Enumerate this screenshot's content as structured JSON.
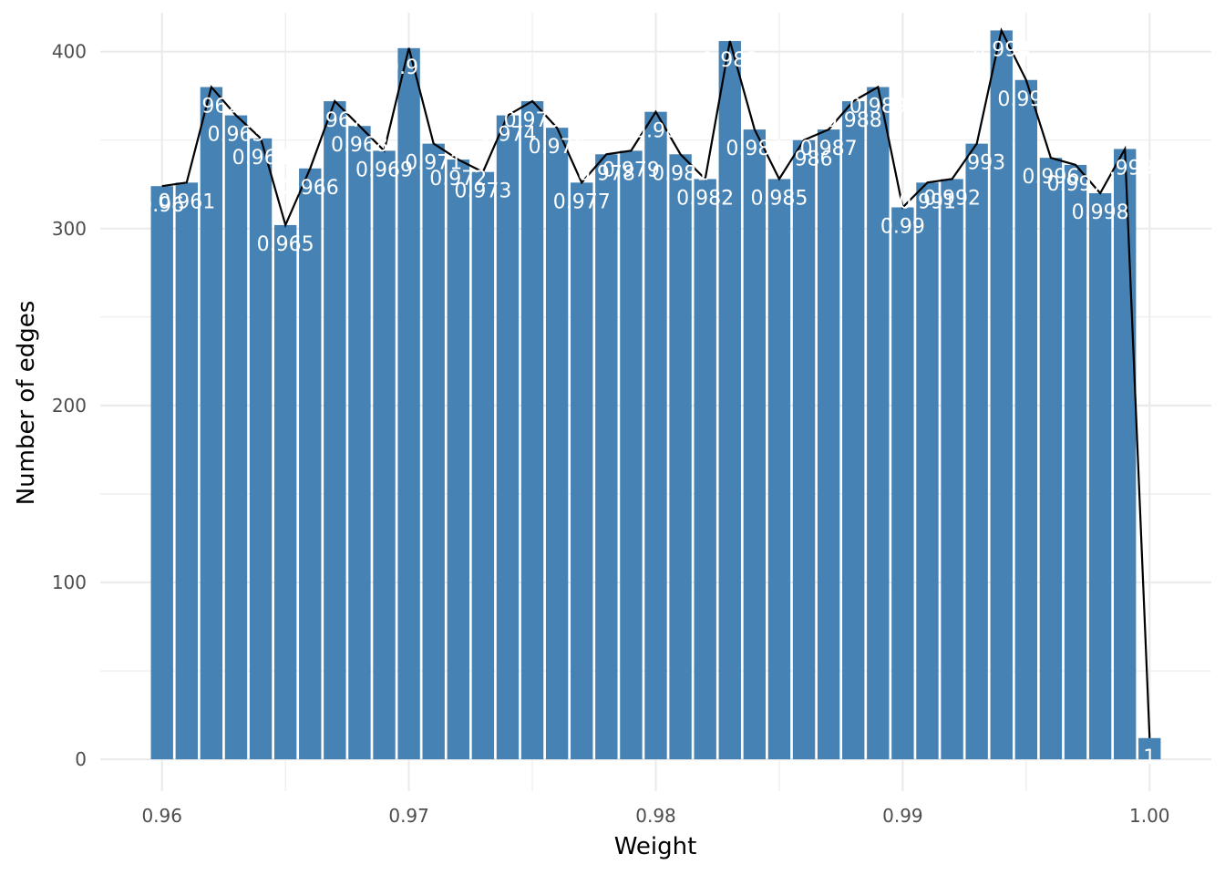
{
  "chart_data": {
    "type": "bar",
    "title": "",
    "xlabel": "Weight",
    "ylabel": "Number of edges",
    "xlim": [
      0.9575,
      1.0025
    ],
    "ylim": [
      -18,
      422
    ],
    "grid": true,
    "legend": "none",
    "x_ticks": [
      "0.96",
      "0.97",
      "0.98",
      "0.99",
      "1.00"
    ],
    "y_ticks": [
      "0",
      "100",
      "200",
      "300",
      "400"
    ],
    "x": [
      0.96,
      0.961,
      0.962,
      0.963,
      0.964,
      0.965,
      0.966,
      0.967,
      0.968,
      0.969,
      0.97,
      0.971,
      0.972,
      0.973,
      0.974,
      0.975,
      0.976,
      0.977,
      0.978,
      0.979,
      0.98,
      0.981,
      0.982,
      0.983,
      0.984,
      0.985,
      0.986,
      0.987,
      0.988,
      0.989,
      0.99,
      0.991,
      0.992,
      0.993,
      0.994,
      0.995,
      0.996,
      0.997,
      0.998,
      0.999,
      1.0
    ],
    "values": [
      324,
      326,
      380,
      364,
      351,
      302,
      334,
      372,
      358,
      344,
      402,
      348,
      339,
      332,
      364,
      372,
      357,
      326,
      342,
      344,
      366,
      342,
      328,
      406,
      356,
      328,
      350,
      356,
      372,
      380,
      312,
      326,
      328,
      348,
      412,
      384,
      340,
      336,
      320,
      345,
      12
    ],
    "bar_labels": [
      "0.96",
      "0.961",
      "0.962",
      "0.963",
      "0.964",
      "0.965",
      "0.966",
      "0.967",
      "0.968",
      "0.969",
      "0.97",
      "0.971",
      "0.972",
      "0.973",
      "0.974",
      "0.975",
      "0.976",
      "0.977",
      "0.978",
      "0.979",
      "0.98",
      "0.981",
      "0.982",
      "0.983",
      "0.984",
      "0.985",
      "0.986",
      "0.987",
      "0.988",
      "0.989",
      "0.99",
      "0.991",
      "0.992",
      "0.993",
      "0.994",
      "0.995",
      "0.996",
      "0.997",
      "0.998",
      "0.999",
      "1"
    ],
    "bar_color": "#4682b4",
    "line_color": "#000000",
    "label_color": "#ffffff",
    "grid_color": "#ebebeb"
  }
}
